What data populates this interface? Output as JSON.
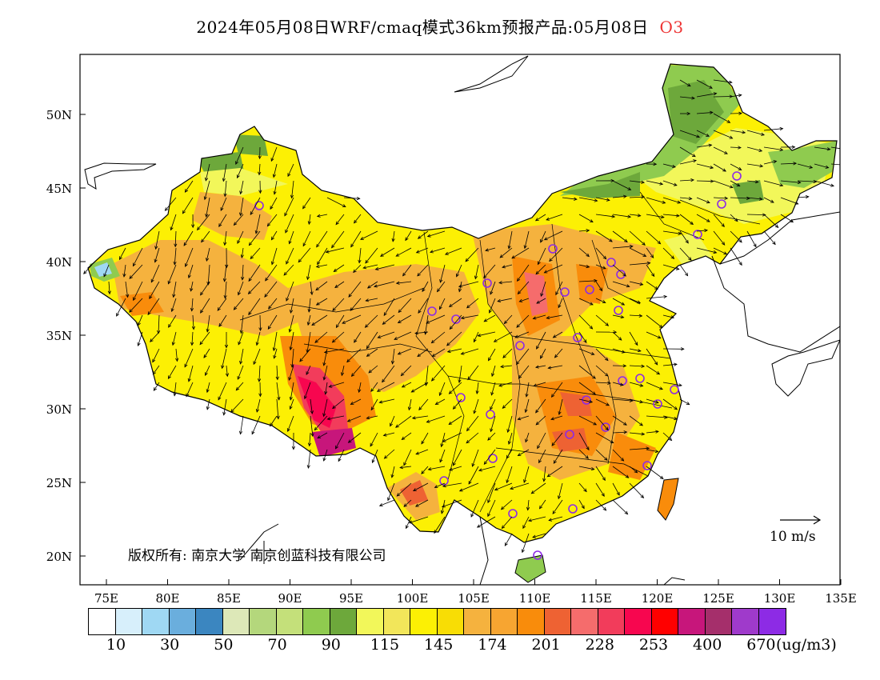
{
  "title": {
    "main": "2024年05月08日WRF/cmaq模式36km预报产品:05月08日",
    "pollutant": "O3"
  },
  "map": {
    "lat_labels": [
      "50N",
      "45N",
      "40N",
      "35N",
      "30N",
      "25N",
      "20N"
    ],
    "lon_labels": [
      "75E",
      "80E",
      "85E",
      "90E",
      "95E",
      "100E",
      "105E",
      "110E",
      "115E",
      "120E",
      "125E",
      "130E",
      "135E"
    ],
    "copyright": "版权所有: 南京大学 南京创蓝科技有限公司",
    "wind_reference": "10 m/s"
  },
  "colorbar": {
    "colors": [
      "#ffffff",
      "#d7effb",
      "#9fd8f3",
      "#6aaedd",
      "#3b86c0",
      "#dde8b8",
      "#b4d77c",
      "#c4e07a",
      "#8fcb4f",
      "#6da83b",
      "#f2f75a",
      "#f2e65a",
      "#fcf004",
      "#f8dd05",
      "#f5b23e",
      "#f7a531",
      "#f98c0b",
      "#ee6233",
      "#f56c6c",
      "#f23c5b",
      "#f7064f",
      "#ff0000",
      "#c7167b",
      "#a52f6b",
      "#9f3acb",
      "#8d2be5"
    ],
    "labels": [
      "10",
      "30",
      "50",
      "70",
      "90",
      "115",
      "145",
      "174",
      "201",
      "228",
      "253",
      "400",
      "670"
    ],
    "unit": "(ug/m3)"
  }
}
